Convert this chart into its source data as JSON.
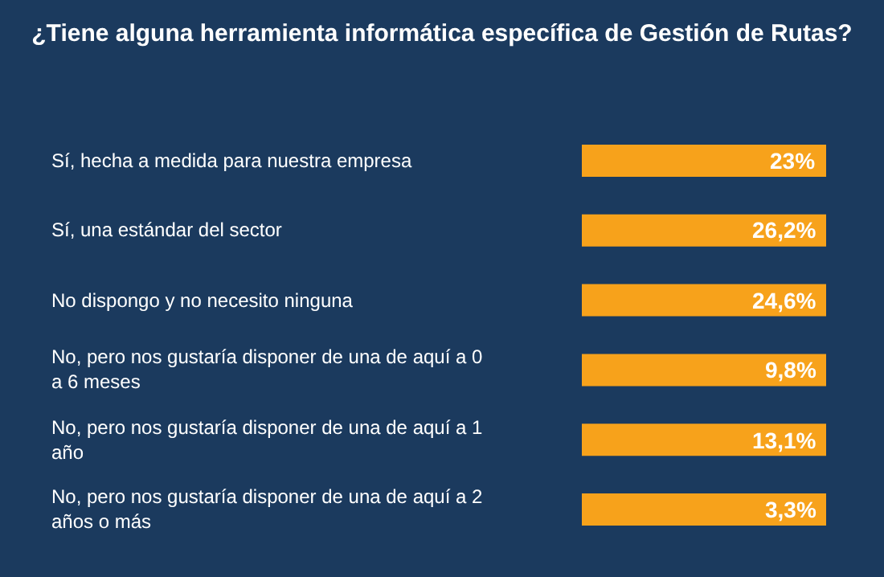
{
  "chart_data": {
    "type": "other",
    "title": "¿Tiene alguna herramienta informática específica de Gestión de Rutas?",
    "categories": [
      "Sí, hecha a medida para nuestra empresa",
      "Sí, una estándar del sector",
      "No dispongo y no necesito ninguna",
      "No, pero nos gustaría disponer de una de aquí a 0 a 6 meses",
      "No, pero nos gustaría disponer de una de aquí a 1 año",
      "No, pero nos gustaría disponer de una de aquí a 2 años o más"
    ],
    "values": [
      23,
      26.2,
      24.6,
      9.8,
      13.1,
      3.3
    ],
    "value_labels": [
      "23%",
      "26,2%",
      "24,6%",
      "9,8%",
      "13,1%",
      "3,3%"
    ],
    "color": "#f7a21b"
  }
}
